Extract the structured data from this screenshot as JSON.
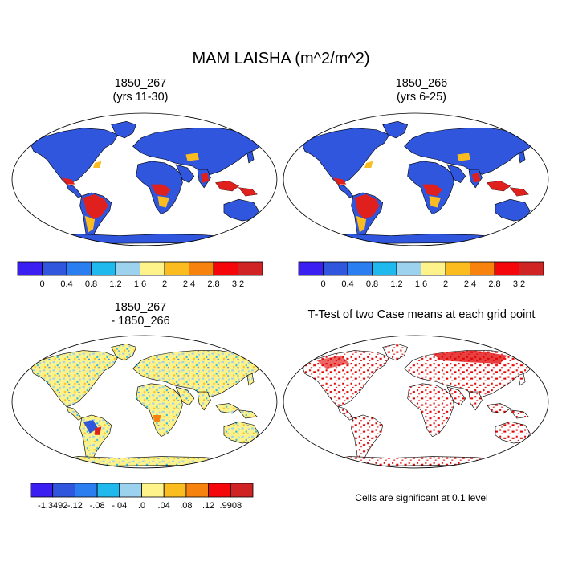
{
  "figure": {
    "title": "MAM LAISHA (m^2/m^2)"
  },
  "panels": [
    {
      "title_line1": "1850_267",
      "title_line2": "(yrs 11-30)"
    },
    {
      "title_line1": "1850_266",
      "title_line2": "(yrs 6-25)"
    },
    {
      "title_line1": "1850_267",
      "title_line2": "- 1850_266"
    },
    {
      "title_line1": "T-Test of two Case means at each grid point",
      "title_line2": ""
    }
  ],
  "colorbar_abs": {
    "colors": [
      "#3b1ef2",
      "#2f56dc",
      "#2a7ef0",
      "#1fb9ee",
      "#9cd2ee",
      "#fef28a",
      "#fbbc1f",
      "#f7830e",
      "#f5060a",
      "#d02424"
    ],
    "labels": [
      "0",
      "0.4",
      "0.8",
      "1.2",
      "1.6",
      "2",
      "2.4",
      "2.8",
      "3.2"
    ]
  },
  "colorbar_diff": {
    "colors": [
      "#3b1ef2",
      "#2f56dc",
      "#2a7ef0",
      "#1fb9ee",
      "#9cd2ee",
      "#fef28a",
      "#fbbc1f",
      "#f7830e",
      "#f5060a",
      "#d02424"
    ],
    "labels": [
      "-1.3492",
      "-.12",
      "-.08",
      "-.04",
      ".0",
      ".04",
      ".08",
      ".12",
      ".9908"
    ]
  },
  "significance_note": "Cells are significant at 0.1 level",
  "map_colors": {
    "ocean": "#ffffff",
    "land_low": "#2f56dc",
    "land_high": "#e0201c",
    "diff_base": "#fef28a",
    "ttest_sig": "#e00000",
    "coast": "#000000"
  }
}
